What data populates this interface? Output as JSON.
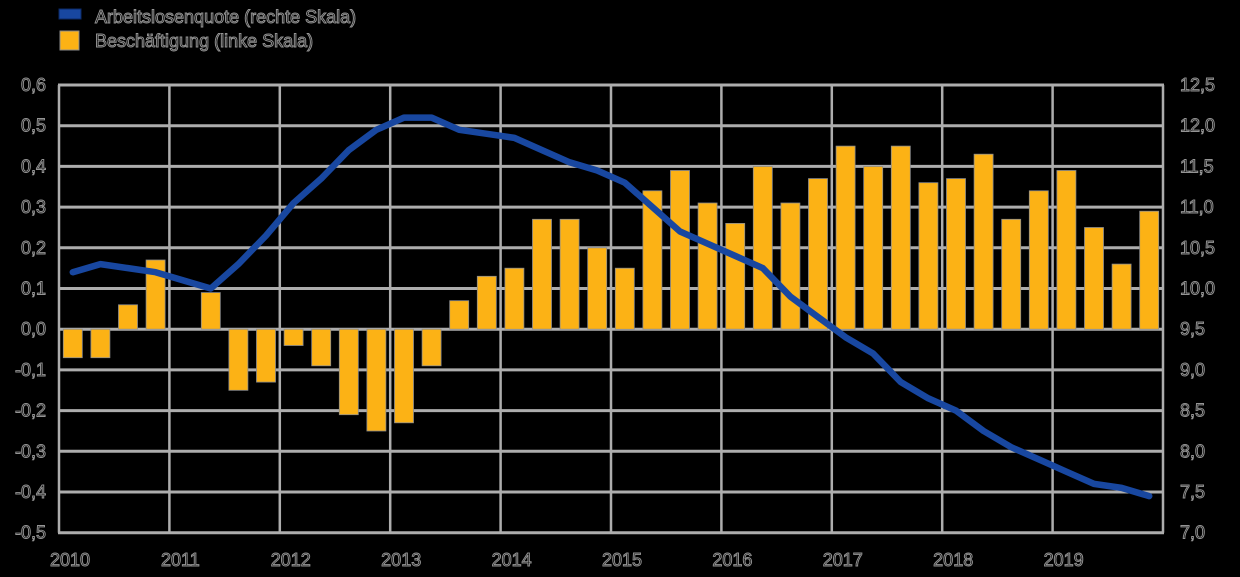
{
  "background_color": "#000000",
  "legend": {
    "items": [
      {
        "label": "Arbeitslosenquote (rechte Skala)",
        "color": "#1847A0",
        "type": "line"
      },
      {
        "label": "Beschäftigung (linke Skala)",
        "color": "#FCB215",
        "type": "bar"
      }
    ]
  },
  "chart_data": {
    "type": "bar+line",
    "frequency": "quarterly",
    "years": [
      "2010",
      "2011",
      "2012",
      "2013",
      "2014",
      "2015",
      "2016",
      "2017",
      "2018",
      "2019"
    ],
    "left_axis": {
      "label_side": "left",
      "ticks": [
        "0,6",
        "0,5",
        "0,4",
        "0,3",
        "0,2",
        "0,1",
        "0,0",
        "-0,1",
        "-0,2",
        "-0,3",
        "-0,4",
        "-0,5"
      ],
      "max": 0.6,
      "min": -0.5,
      "step": 0.1
    },
    "right_axis": {
      "label_side": "right",
      "ticks": [
        "12,5",
        "12,0",
        "11,5",
        "11,0",
        "10,5",
        "10,0",
        "9,5",
        "9,0",
        "8,5",
        "8,0",
        "7,5",
        "7,0"
      ],
      "max": 12.5,
      "min": 7.0,
      "step": 0.5
    },
    "grid": true,
    "grid_color": "#ADADAD",
    "series": [
      {
        "name": "Beschäftigung (linke Skala)",
        "type": "bar",
        "axis": "left",
        "color": "#FCB215",
        "values": [
          -0.07,
          -0.07,
          0.06,
          0.17,
          0.0,
          0.09,
          -0.15,
          -0.13,
          -0.04,
          -0.09,
          -0.21,
          -0.25,
          -0.23,
          -0.09,
          0.07,
          0.13,
          0.15,
          0.27,
          0.27,
          0.2,
          0.15,
          0.34,
          0.39,
          0.31,
          0.26,
          0.4,
          0.31,
          0.37,
          0.45,
          0.4,
          0.45,
          0.36,
          0.37,
          0.43,
          0.27,
          0.34,
          0.39,
          0.25,
          0.16,
          0.29
        ]
      },
      {
        "name": "Arbeitslosenquote (rechte Skala)",
        "type": "line",
        "axis": "right",
        "color": "#1847A0",
        "values": [
          10.2,
          10.3,
          10.25,
          10.2,
          10.1,
          10.0,
          10.3,
          10.65,
          11.05,
          11.35,
          11.7,
          11.95,
          12.1,
          12.1,
          11.95,
          11.9,
          11.85,
          11.7,
          11.55,
          11.45,
          11.3,
          11.0,
          10.7,
          10.55,
          10.4,
          10.25,
          9.9,
          9.65,
          9.4,
          9.2,
          8.85,
          8.65,
          8.5,
          8.25,
          8.05,
          7.9,
          7.75,
          7.6,
          7.55,
          7.45
        ]
      }
    ]
  }
}
